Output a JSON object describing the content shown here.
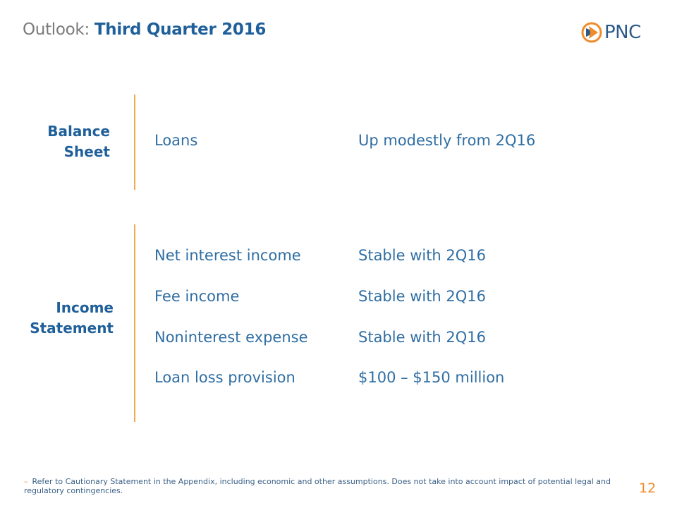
{
  "title": {
    "prefix": "Outlook:",
    "main": "Third Quarter 2016"
  },
  "logo": {
    "text": "PNC",
    "orange": "#f08b2a",
    "blue": "#2b5b8a"
  },
  "sections": [
    {
      "label_line1": "Balance",
      "label_line2": "Sheet",
      "rows": [
        {
          "label": "Loans",
          "value": "Up modestly from 2Q16"
        }
      ]
    },
    {
      "label_line1": "Income",
      "label_line2": "Statement",
      "rows": [
        {
          "label": "Net interest income",
          "value": "Stable with 2Q16"
        },
        {
          "label": "Fee income",
          "value": "Stable with 2Q16"
        },
        {
          "label": "Noninterest expense",
          "value": "Stable with 2Q16"
        },
        {
          "label": "Loan loss provision",
          "value": "$100 – $150 million"
        }
      ]
    }
  ],
  "footnote": {
    "dash": "–",
    "line1": "Refer to Cautionary Statement in the Appendix, including economic and other assumptions.  Does not take into account impact of potential legal and",
    "line2": "regulatory contingencies."
  },
  "page_number": "12",
  "colors": {
    "title_blue": "#1f5f9a",
    "text_blue": "#2f6ea3",
    "accent_orange": "#f2a94e",
    "gray": "#7b7b7b"
  }
}
